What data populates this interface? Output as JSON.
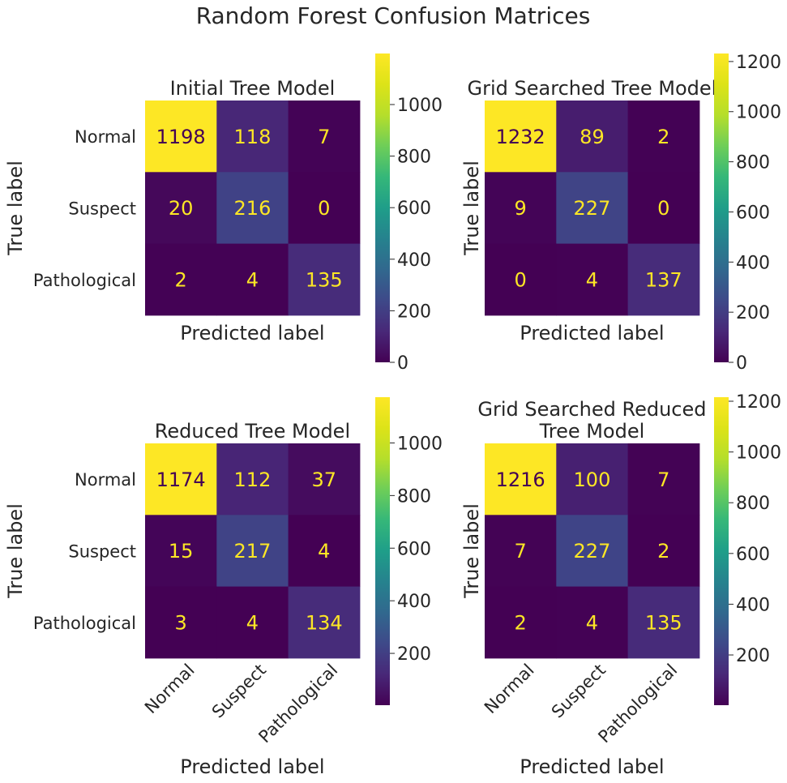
{
  "figure": {
    "title": "Random Forest Confusion Matrices"
  },
  "chart_data": [
    {
      "type": "heatmap",
      "title": "Initial Tree Model",
      "title_lines": [
        "Initial Tree Model"
      ],
      "xlabel": "Predicted label",
      "ylabel": "True label",
      "x_tick_labels": [],
      "y_tick_labels": [
        "Normal",
        "Suspect",
        "Pathological"
      ],
      "matrix": [
        [
          1198,
          118,
          7
        ],
        [
          20,
          216,
          0
        ],
        [
          2,
          4,
          135
        ]
      ],
      "colorbar": {
        "min": 0,
        "max": 1198,
        "ticks": [
          0,
          200,
          400,
          600,
          800,
          1000
        ]
      }
    },
    {
      "type": "heatmap",
      "title": "Grid Searched Tree Model",
      "title_lines": [
        "Grid Searched Tree Model"
      ],
      "xlabel": "Predicted label",
      "ylabel": "True label",
      "x_tick_labels": [],
      "y_tick_labels": [],
      "matrix": [
        [
          1232,
          89,
          2
        ],
        [
          9,
          227,
          0
        ],
        [
          0,
          4,
          137
        ]
      ],
      "colorbar": {
        "min": 0,
        "max": 1232,
        "ticks": [
          0,
          200,
          400,
          600,
          800,
          1000,
          1200
        ]
      }
    },
    {
      "type": "heatmap",
      "title": "Reduced Tree Model",
      "title_lines": [
        "Reduced Tree Model"
      ],
      "xlabel": "Predicted label",
      "ylabel": "True label",
      "x_tick_labels": [
        "Normal",
        "Suspect",
        "Pathological"
      ],
      "y_tick_labels": [
        "Normal",
        "Suspect",
        "Pathological"
      ],
      "matrix": [
        [
          1174,
          112,
          37
        ],
        [
          15,
          217,
          4
        ],
        [
          3,
          4,
          134
        ]
      ],
      "colorbar": {
        "min": 3,
        "max": 1174,
        "ticks": [
          200,
          400,
          600,
          800,
          1000
        ]
      }
    },
    {
      "type": "heatmap",
      "title": "Grid Searched Reduced Tree Model",
      "title_lines": [
        "Grid Searched Reduced",
        "Tree Model"
      ],
      "xlabel": "Predicted label",
      "ylabel": "True label",
      "x_tick_labels": [
        "Normal",
        "Suspect",
        "Pathological"
      ],
      "y_tick_labels": [],
      "matrix": [
        [
          1216,
          100,
          7
        ],
        [
          7,
          227,
          2
        ],
        [
          2,
          4,
          135
        ]
      ],
      "colorbar": {
        "min": 2,
        "max": 1216,
        "ticks": [
          200,
          400,
          600,
          800,
          1000,
          1200
        ]
      }
    }
  ]
}
